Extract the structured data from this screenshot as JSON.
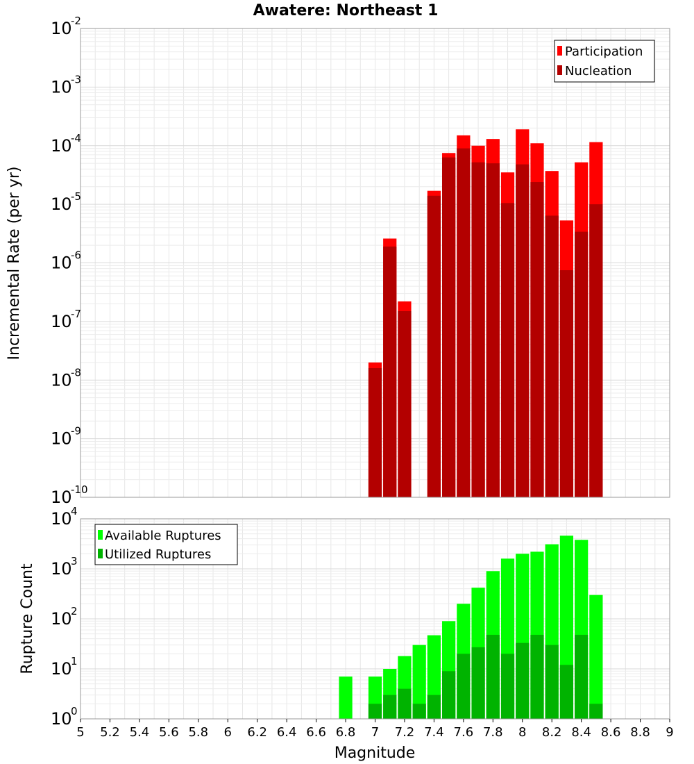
{
  "chart_data": [
    {
      "type": "bar",
      "title": "Awatere: Northeast 1",
      "ylabel": "Incremental Rate (per yr)",
      "yscale": "log",
      "ylim_exponents": [
        -10,
        -2
      ],
      "y_ticks": [
        {
          "base": "10",
          "exp": "-10"
        },
        {
          "base": "10",
          "exp": "-9"
        },
        {
          "base": "10",
          "exp": "-8"
        },
        {
          "base": "10",
          "exp": "-7"
        },
        {
          "base": "10",
          "exp": "-6"
        },
        {
          "base": "10",
          "exp": "-5"
        },
        {
          "base": "10",
          "exp": "-4"
        },
        {
          "base": "10",
          "exp": "-3"
        },
        {
          "base": "10",
          "exp": "-2"
        }
      ],
      "grid": true,
      "legend_position": "top-right",
      "x": [
        7.0,
        7.1,
        7.2,
        7.3,
        7.4,
        7.5,
        7.6,
        7.7,
        7.8,
        7.9,
        8.0,
        8.1,
        8.2,
        8.3,
        8.4,
        8.5
      ],
      "series": [
        {
          "name": "Participation",
          "color": "#ff0000",
          "values": [
            2e-08,
            2.6e-06,
            2.2e-07,
            null,
            1.7e-05,
            7.5e-05,
            0.00015,
            0.0001,
            0.00013,
            3.5e-05,
            0.00019,
            0.00011,
            3.7e-05,
            5.3e-06,
            5.2e-05,
            0.000115
          ]
        },
        {
          "name": "Nucleation",
          "color": "#b30000",
          "values": [
            1.6e-08,
            1.9e-06,
            1.5e-07,
            null,
            1.4e-05,
            6.3e-05,
            9e-05,
            5.2e-05,
            5e-05,
            1.05e-05,
            4.8e-05,
            2.4e-05,
            6.4e-06,
            7.5e-07,
            3.4e-06,
            1e-05
          ]
        }
      ]
    },
    {
      "type": "bar",
      "ylabel": "Rupture Count",
      "xlabel": "Magnitude",
      "yscale": "log",
      "ylim_exponents": [
        0,
        4
      ],
      "y_ticks": [
        {
          "base": "10",
          "exp": "0"
        },
        {
          "base": "10",
          "exp": "1"
        },
        {
          "base": "10",
          "exp": "2"
        },
        {
          "base": "10",
          "exp": "3"
        },
        {
          "base": "10",
          "exp": "4"
        }
      ],
      "grid": true,
      "legend_position": "top-left",
      "x_tick_labels": [
        "5",
        "5.2",
        "5.4",
        "5.6",
        "5.8",
        "6",
        "6.2",
        "6.4",
        "6.6",
        "6.8",
        "7",
        "7.2",
        "7.4",
        "7.6",
        "7.8",
        "8",
        "8.2",
        "8.4",
        "8.6",
        "8.8",
        "9"
      ],
      "xlim": [
        5,
        9
      ],
      "x": [
        6.8,
        7.0,
        7.1,
        7.2,
        7.3,
        7.4,
        7.5,
        7.6,
        7.7,
        7.8,
        7.9,
        8.0,
        8.1,
        8.2,
        8.3,
        8.4,
        8.5
      ],
      "series": [
        {
          "name": "Available Ruptures",
          "color": "#00ff00",
          "values": [
            7,
            7,
            10,
            18,
            30,
            47,
            90,
            200,
            420,
            900,
            1600,
            2000,
            2200,
            3100,
            4600,
            3800,
            300
          ]
        },
        {
          "name": "Utilized Ruptures",
          "color": "#00b300",
          "values": [
            null,
            2,
            3,
            4,
            2,
            3,
            9,
            20,
            27,
            48,
            20,
            33,
            48,
            30,
            12,
            48,
            2
          ]
        }
      ]
    }
  ]
}
